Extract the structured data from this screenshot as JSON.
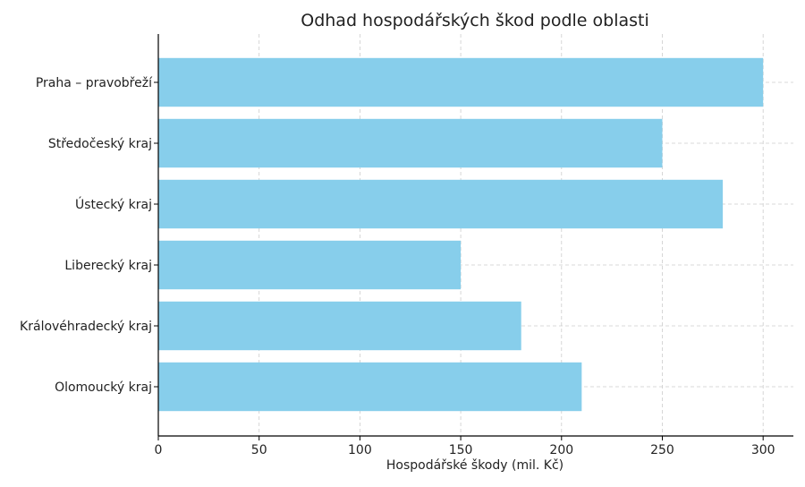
{
  "chart_data": {
    "type": "bar",
    "orientation": "horizontal",
    "title": "Odhad hospodářských škod podle oblasti",
    "xlabel": "Hospodářské škody (mil. Kč)",
    "ylabel": "",
    "categories": [
      "Praha – pravobřeží",
      "Středočeský kraj",
      "Ústecký kraj",
      "Liberecký kraj",
      "Královéhradecký kraj",
      "Olomoucký kraj"
    ],
    "values": [
      300,
      250,
      280,
      150,
      180,
      210
    ],
    "xlim": [
      0,
      315
    ],
    "xticks": [
      0,
      50,
      100,
      150,
      200,
      250,
      300
    ],
    "grid": true,
    "bar_color": "#87ceeb"
  }
}
